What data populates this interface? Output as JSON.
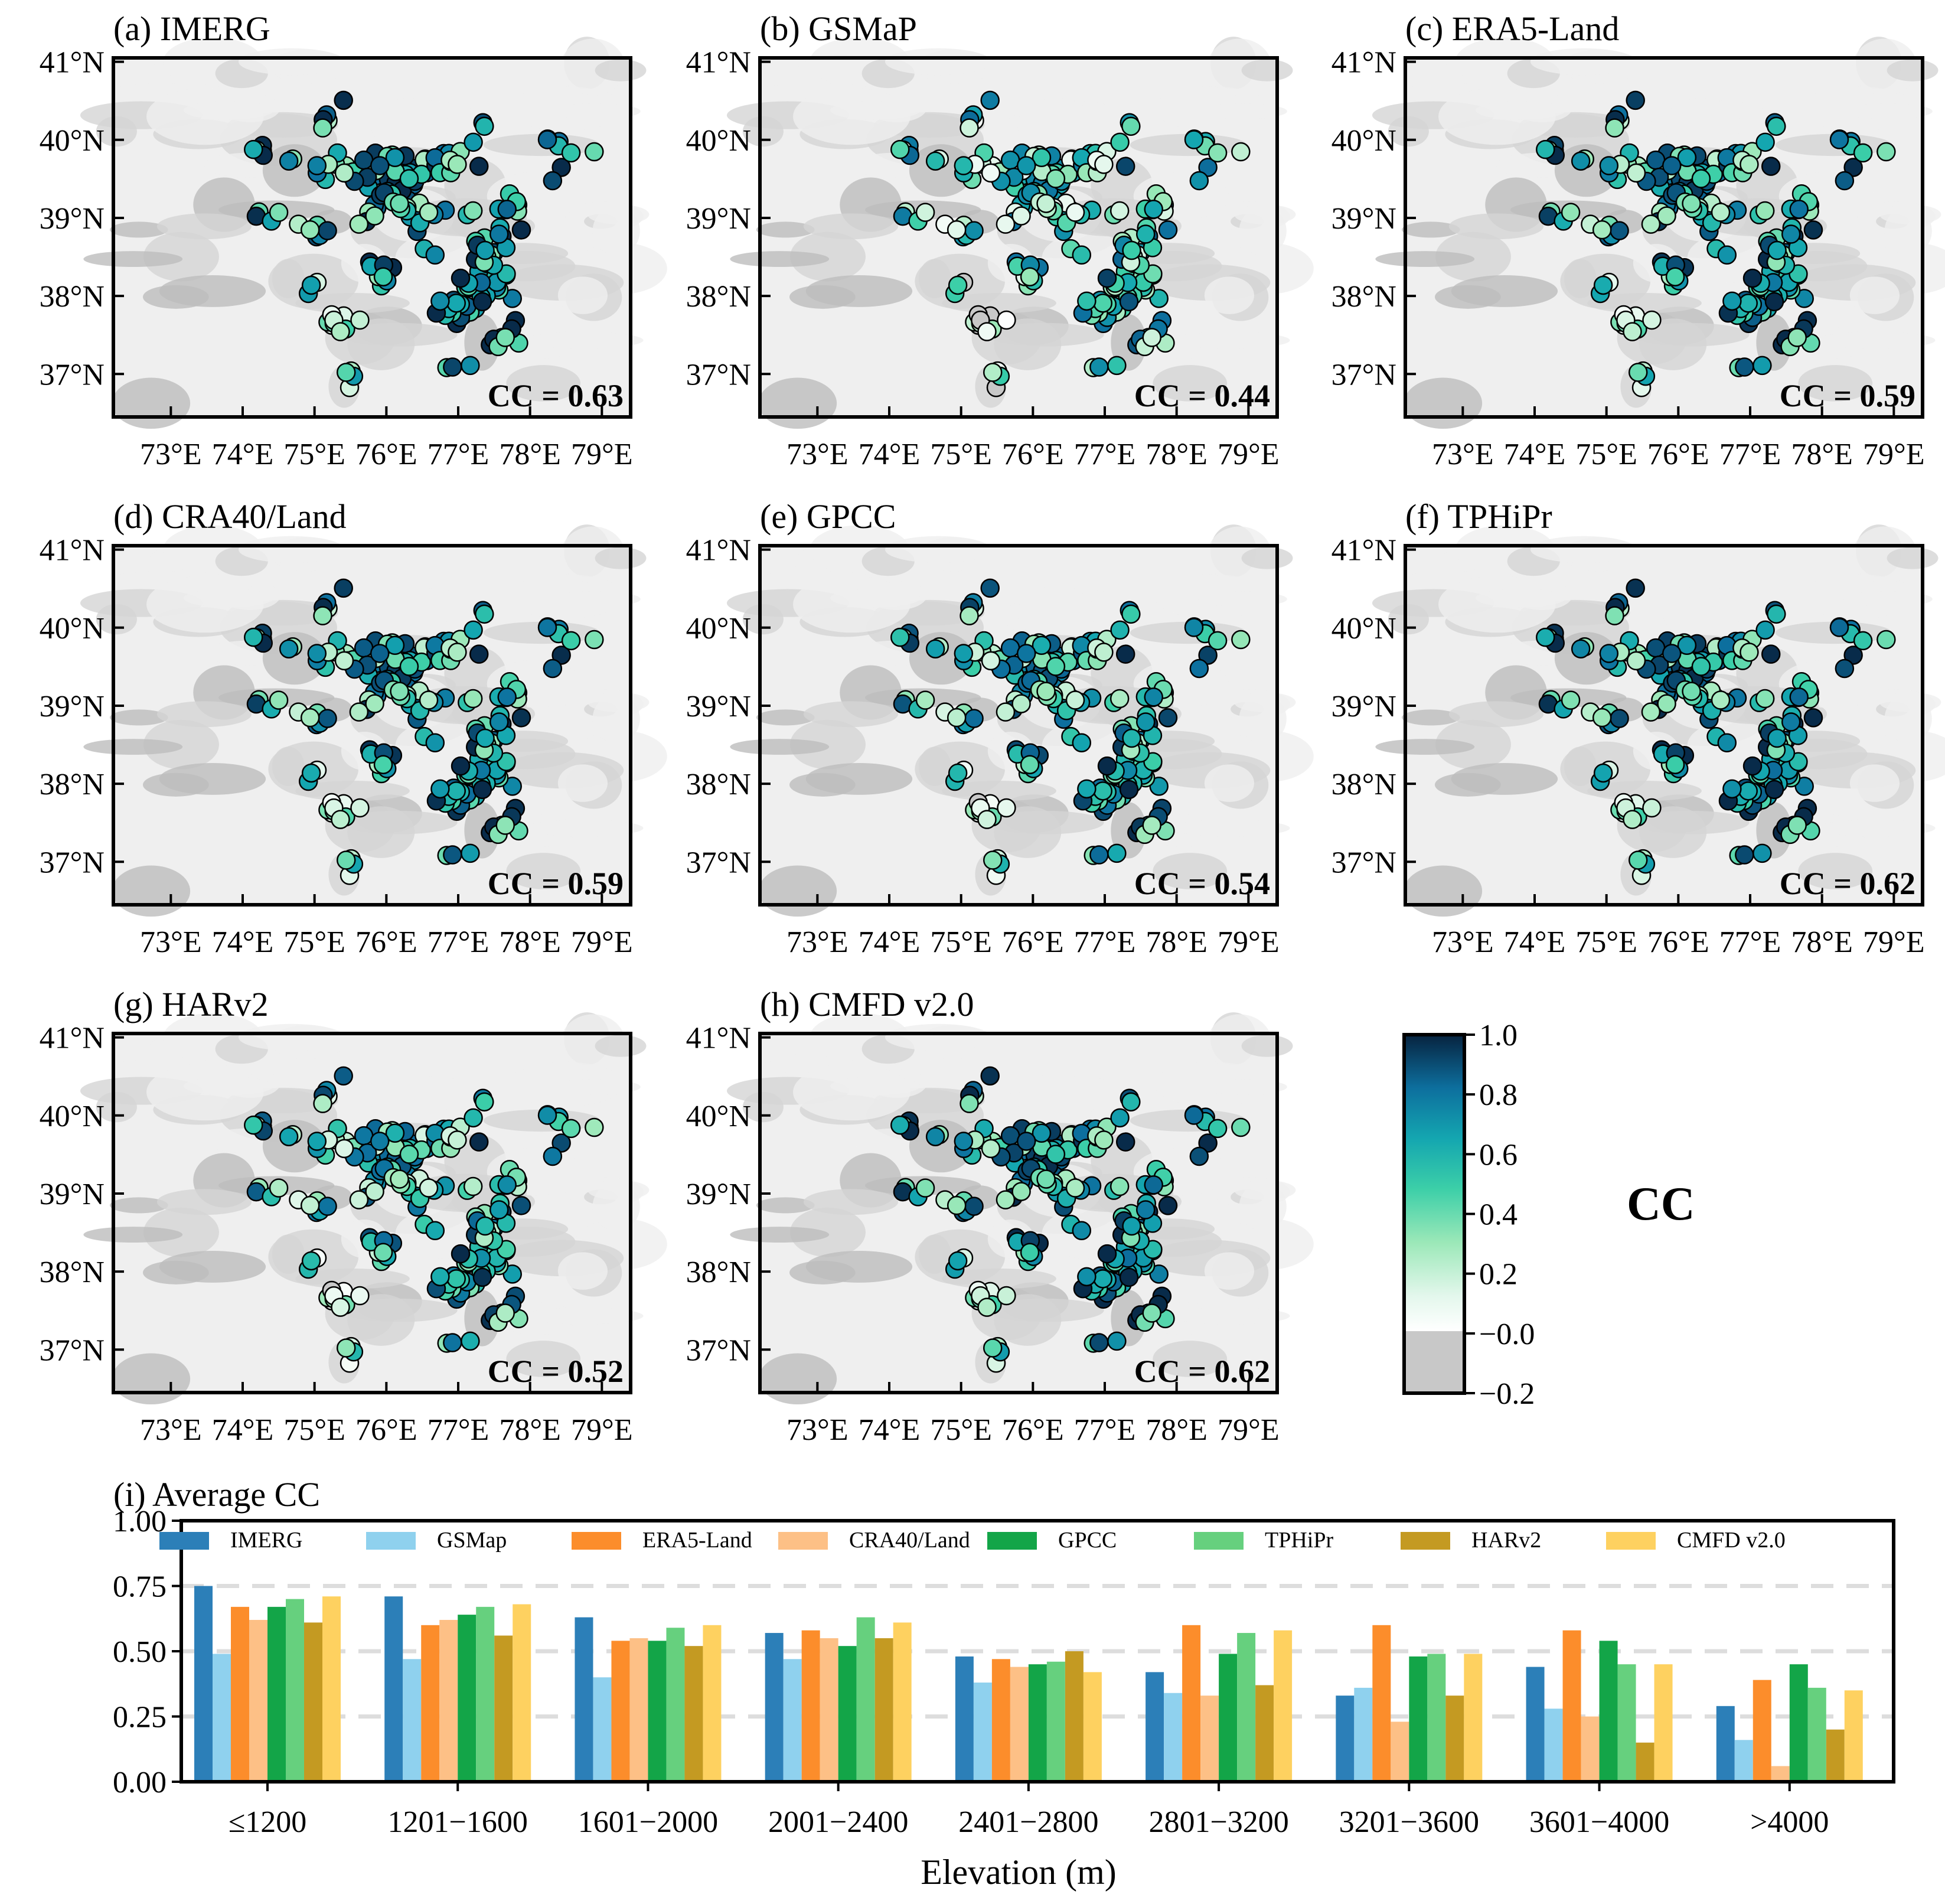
{
  "colors": {
    "IMERG": "#2c7fb8",
    "GSMap": "#8fd1ee",
    "ERA5-Land": "#fc8d2b",
    "CRA40/Land": "#fdc086",
    "GPCC": "#13a548",
    "TPHiPr": "#66d07e",
    "HARv2": "#c49a22",
    "CMFD v2.0": "#fed160",
    "terrain_light": "#efefef",
    "terrain_mid": "#d4d4d4",
    "terrain_dark": "#bdbdbd",
    "grid": "#dddddd"
  },
  "map_axes": {
    "lon_ticks": [
      "73°E",
      "74°E",
      "75°E",
      "76°E",
      "77°E",
      "78°E",
      "79°E"
    ],
    "lat_ticks": [
      "41°N",
      "40°N",
      "39°N",
      "38°N",
      "37°N"
    ]
  },
  "panels": [
    {
      "title": "(a) IMERG",
      "cc_label": "CC = 0.63",
      "cc": 0.63
    },
    {
      "title": "(b) GSMaP",
      "cc_label": "CC = 0.44",
      "cc": 0.44
    },
    {
      "title": "(c) ERA5-Land",
      "cc_label": "CC = 0.59",
      "cc": 0.59
    },
    {
      "title": "(d) CRA40/Land",
      "cc_label": "CC = 0.59",
      "cc": 0.59
    },
    {
      "title": "(e) GPCC",
      "cc_label": "CC = 0.54",
      "cc": 0.54
    },
    {
      "title": "(f) TPHiPr",
      "cc_label": "CC = 0.62",
      "cc": 0.62
    },
    {
      "title": "(g) HARv2",
      "cc_label": "CC = 0.52",
      "cc": 0.52
    },
    {
      "title": "(h) CMFD v2.0",
      "cc_label": "CC = 0.62",
      "cc": 0.62
    }
  ],
  "colorbar": {
    "label": "CC",
    "ticks": [
      "1.0",
      "0.8",
      "0.6",
      "0.4",
      "0.2",
      "−0.0",
      "−0.2"
    ]
  },
  "chart_data": {
    "type": "bar",
    "title": "(i) Average CC",
    "xlabel": "Elevation (m)",
    "ylabel": "",
    "ylim": [
      0,
      1.0
    ],
    "yticks": [
      "0.00",
      "0.25",
      "0.50",
      "0.75",
      "1.00"
    ],
    "grid": "horizontal dashed",
    "legend_position": "top",
    "categories": [
      "≤1200",
      "1201−1600",
      "1601−2000",
      "2001−2400",
      "2401−2800",
      "2801−3200",
      "3201−3600",
      "3601−4000",
      ">4000"
    ],
    "series": [
      {
        "name": "IMERG",
        "values": [
          0.75,
          0.71,
          0.63,
          0.57,
          0.48,
          0.42,
          0.33,
          0.44,
          0.29
        ]
      },
      {
        "name": "GSMap",
        "values": [
          0.49,
          0.47,
          0.4,
          0.47,
          0.38,
          0.34,
          0.36,
          0.28,
          0.16
        ]
      },
      {
        "name": "ERA5-Land",
        "values": [
          0.67,
          0.6,
          0.54,
          0.58,
          0.47,
          0.6,
          0.6,
          0.58,
          0.39
        ]
      },
      {
        "name": "CRA40/Land",
        "values": [
          0.62,
          0.62,
          0.55,
          0.55,
          0.44,
          0.33,
          0.23,
          0.25,
          0.06
        ]
      },
      {
        "name": "GPCC",
        "values": [
          0.67,
          0.64,
          0.54,
          0.52,
          0.45,
          0.49,
          0.48,
          0.54,
          0.45
        ]
      },
      {
        "name": "TPHiPr",
        "values": [
          0.7,
          0.67,
          0.59,
          0.63,
          0.46,
          0.57,
          0.49,
          0.45,
          0.36
        ]
      },
      {
        "name": "HARv2",
        "values": [
          0.61,
          0.56,
          0.52,
          0.55,
          0.5,
          0.37,
          0.33,
          0.15,
          0.2
        ]
      },
      {
        "name": "CMFD v2.0",
        "values": [
          0.71,
          0.68,
          0.6,
          0.61,
          0.42,
          0.58,
          0.49,
          0.45,
          0.35
        ]
      }
    ]
  }
}
